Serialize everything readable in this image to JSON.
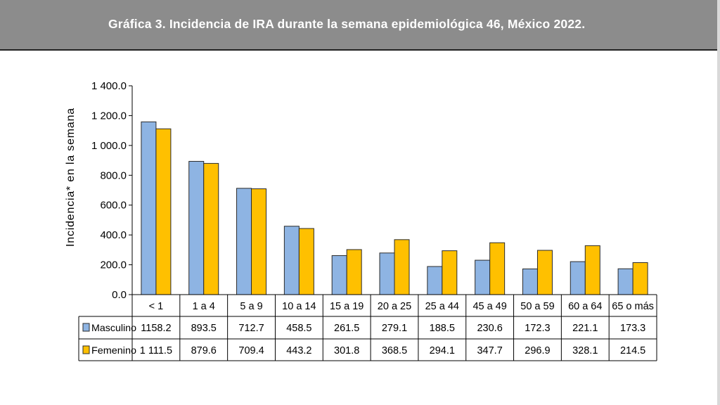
{
  "header": {
    "title": "Gráfica 3. Incidencia de IRA durante la semana epidemiológica 46, México 2022."
  },
  "chart_data": {
    "type": "bar",
    "title": "",
    "xlabel": "",
    "ylabel": "Incidencia* en la semana",
    "ylim": [
      0,
      1400
    ],
    "yticks": [
      "0.0",
      "200.0",
      "400.0",
      "600.0",
      "800.0",
      "1 000.0",
      "1 200.0",
      "1 400.0"
    ],
    "grid": false,
    "legend_placement": "data-table",
    "categories": [
      "< 1",
      "1 a 4",
      "5 a 9",
      "10 a 14",
      "15 a 19",
      "20 a 25",
      "25 a 44",
      "45 a 49",
      "50 a 59",
      "60 a 64",
      "65 o más"
    ],
    "series": [
      {
        "name": "Masculino",
        "color": "#8eb4e3",
        "values": [
          1158.2,
          893.5,
          712.7,
          458.5,
          261.5,
          279.1,
          188.5,
          230.6,
          172.3,
          221.1,
          173.3
        ],
        "labels": [
          "1158.2",
          "893.5",
          "712.7",
          "458.5",
          "261.5",
          "279.1",
          "188.5",
          "230.6",
          "172.3",
          "221.1",
          "173.3"
        ]
      },
      {
        "name": "Femenino",
        "color": "#ffc000",
        "values": [
          1111.5,
          879.6,
          709.4,
          443.2,
          301.8,
          368.5,
          294.1,
          347.7,
          296.9,
          328.1,
          214.5
        ],
        "labels": [
          "1 111.5",
          "879.6",
          "709.4",
          "443.2",
          "301.8",
          "368.5",
          "294.1",
          "347.7",
          "296.9",
          "328.1",
          "214.5"
        ]
      }
    ]
  }
}
